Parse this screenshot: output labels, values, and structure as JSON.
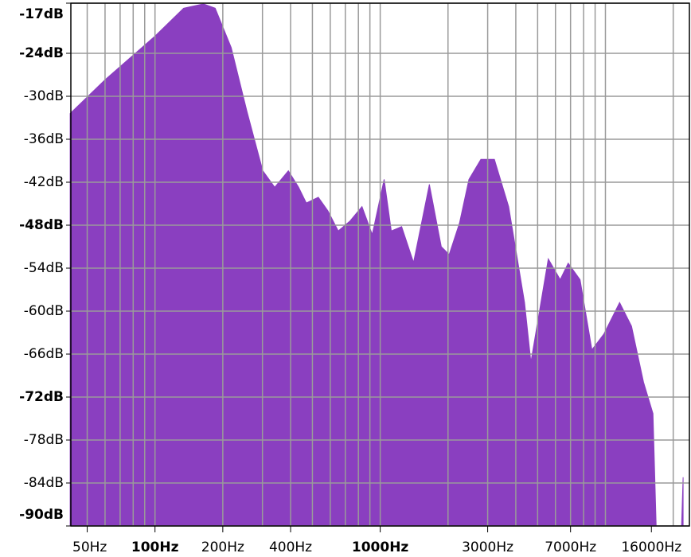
{
  "chart_data": {
    "type": "area",
    "log_x": true,
    "grid": true,
    "color": "#8a3fc0",
    "x": [
      42,
      60,
      100,
      134,
      164,
      185,
      218,
      256,
      301,
      340,
      391,
      434,
      470,
      531,
      586,
      651,
      735,
      830,
      922,
      1041,
      1120,
      1245,
      1406,
      1653,
      1867,
      2024,
      2249,
      2477,
      2799,
      3214,
      3718,
      4034,
      4374,
      4668,
      5575,
      6299,
      6834,
      7716,
      8710,
      9840,
      11560,
      13060,
      14760,
      16260,
      16800,
      21780,
      22130
    ],
    "values": [
      -32.4,
      -27.7,
      -21.6,
      -17.7,
      -17.1,
      -17.7,
      -23.2,
      -32.1,
      -40.4,
      -42.7,
      -40.4,
      -42.7,
      -44.9,
      -44.1,
      -46,
      -48.8,
      -47.4,
      -45.4,
      -49.3,
      -41.6,
      -48.8,
      -48.2,
      -53.2,
      -42.3,
      -51,
      -52.1,
      -47.7,
      -41.6,
      -38.8,
      -38.8,
      -45.4,
      -52.1,
      -58.8,
      -67.1,
      -52.7,
      -55.6,
      -53.3,
      -55.6,
      -65.4,
      -63.2,
      -58.8,
      -62.1,
      -69.9,
      -74.3,
      -90,
      -90,
      -83.2
    ],
    "xlim": [
      42.3,
      23600
    ],
    "ylim": [
      -90,
      -17
    ],
    "xticks": [
      {
        "value": 50,
        "label": "50Hz"
      },
      {
        "value": 100,
        "label": "100Hz"
      },
      {
        "value": 200,
        "label": "200Hz"
      },
      {
        "value": 400,
        "label": "400Hz"
      },
      {
        "value": 1000,
        "label": "1000Hz"
      },
      {
        "value": 3000,
        "label": "3000Hz"
      },
      {
        "value": 7000,
        "label": "7000Hz"
      },
      {
        "value": 16000,
        "label": "16000Hz"
      }
    ],
    "xgrid": [
      50,
      60,
      70,
      80,
      90,
      100,
      200,
      300,
      400,
      500,
      600,
      700,
      800,
      900,
      1000,
      2000,
      3000,
      4000,
      5000,
      6000,
      7000,
      8000,
      9000,
      10000,
      20000
    ],
    "yticks": [
      {
        "value": -17,
        "label": "-17dB"
      },
      {
        "value": -24,
        "label": "-24dB"
      },
      {
        "value": -30,
        "label": "-30dB"
      },
      {
        "value": -36,
        "label": "-36dB"
      },
      {
        "value": -42,
        "label": "-42dB"
      },
      {
        "value": -48,
        "label": "-48dB"
      },
      {
        "value": -54,
        "label": "-54dB"
      },
      {
        "value": -60,
        "label": "-60dB"
      },
      {
        "value": -66,
        "label": "-66dB"
      },
      {
        "value": -72,
        "label": "-72dB"
      },
      {
        "value": -78,
        "label": "-78dB"
      },
      {
        "value": -84,
        "label": "-84dB"
      },
      {
        "value": -90,
        "label": "-90dB"
      }
    ]
  }
}
